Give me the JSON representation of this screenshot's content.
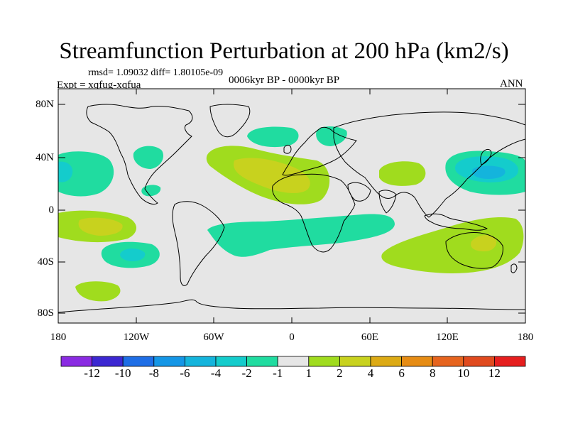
{
  "title": "Streamfunction Perturbation at 200 hPa (km2/s)",
  "stats": "rmsd= 1.09032 diff= 1.80105e-09",
  "experiment": "Expt = xqfug-xqfua",
  "period": "0006kyr BP - 0000kyr BP",
  "season": "ANN",
  "lat_labels": [
    "80N",
    "40N",
    "0",
    "40S",
    "80S"
  ],
  "lon_labels": [
    "180",
    "120W",
    "60W",
    "0",
    "60E",
    "120E",
    "180"
  ],
  "colorbar": {
    "labels": [
      "-12",
      "-10",
      "-8",
      "-6",
      "-4",
      "-2",
      "-1",
      "1",
      "2",
      "4",
      "6",
      "8",
      "10",
      "12"
    ],
    "colors": [
      "#8a2be2",
      "#3c28d2",
      "#1e6ee6",
      "#1496e6",
      "#14b4dc",
      "#14cccc",
      "#20dca0",
      "#e6e6e6",
      "#a0dc1e",
      "#c8d21e",
      "#dcaa14",
      "#e68c14",
      "#e6641e",
      "#e04a1e",
      "#e61e1e"
    ]
  },
  "chart_data": {
    "type": "heatmap",
    "title": "Streamfunction Perturbation at 200 hPa (km2/s)",
    "units": "km2/s",
    "xlim": [
      -180,
      180
    ],
    "ylim": [
      -90,
      90
    ],
    "levels": [
      -12,
      -10,
      -8,
      -6,
      -4,
      -2,
      -1,
      1,
      2,
      4,
      6,
      8,
      10,
      12
    ],
    "anomalies": [
      {
        "name": "north-pacific-east-negative",
        "lon": -175,
        "lat": 30,
        "value": -2.5
      },
      {
        "name": "north-pacific-east-core",
        "lon": -178,
        "lat": 28,
        "value": -3
      },
      {
        "name": "west-north-america-negative",
        "lon": -121,
        "lat": 44,
        "value": -1.5
      },
      {
        "name": "gulf-negative",
        "lon": -113,
        "lat": 15,
        "value": -1.5
      },
      {
        "name": "north-atlantic-negative",
        "lon": -13,
        "lat": 58,
        "value": -1.5
      },
      {
        "name": "scandinavia-negative",
        "lon": 32,
        "lat": 58,
        "value": -1.5
      },
      {
        "name": "north-africa-positive",
        "lon": -13,
        "lat": 27,
        "value": 3
      },
      {
        "name": "north-africa-core",
        "lon": -5,
        "lat": 27,
        "value": 4.5
      },
      {
        "name": "central-asia-positive",
        "lon": 78,
        "lat": 28,
        "value": 2
      },
      {
        "name": "northwest-pacific-negative",
        "lon": 148,
        "lat": 28,
        "value": -3
      },
      {
        "name": "northwest-pacific-core",
        "lon": 155,
        "lat": 28,
        "value": -5
      },
      {
        "name": "south-pacific-positive",
        "lon": -155,
        "lat": -12,
        "value": 2.5
      },
      {
        "name": "south-pacific-core",
        "lon": -150,
        "lat": -12,
        "value": 3
      },
      {
        "name": "southeast-pacific-negative",
        "lon": -135,
        "lat": -40,
        "value": -2
      },
      {
        "name": "southeast-pacific-core",
        "lon": -133,
        "lat": -38,
        "value": -3
      },
      {
        "name": "south-atlantic-indian-negative",
        "lon": 10,
        "lat": -16,
        "value": -1.5
      },
      {
        "name": "australia-positive",
        "lon": 130,
        "lat": -27,
        "value": 2.5
      },
      {
        "name": "australia-core",
        "lon": 150,
        "lat": -27,
        "value": 4
      },
      {
        "name": "southern-ocean-positive",
        "lon": -145,
        "lat": -63,
        "value": 2
      }
    ]
  }
}
